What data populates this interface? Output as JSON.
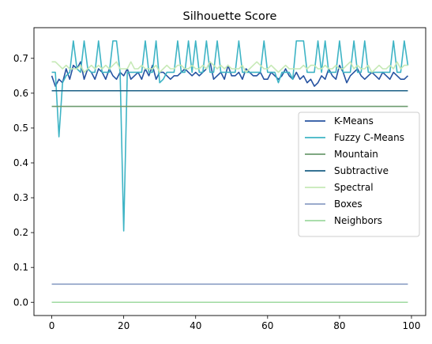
{
  "chart_data": {
    "type": "line",
    "title": "Silhouette Score",
    "xlabel": "",
    "ylabel": "",
    "xlim": [
      -4.95,
      103.95
    ],
    "ylim": [
      -0.038,
      0.788
    ],
    "xticks": [
      0,
      20,
      40,
      60,
      80,
      100
    ],
    "yticks": [
      0.0,
      0.1,
      0.2,
      0.3,
      0.4,
      0.5,
      0.6,
      0.7
    ],
    "ytick_labels": [
      "0.0",
      "0.1",
      "0.2",
      "0.3",
      "0.4",
      "0.5",
      "0.6",
      "0.7"
    ],
    "grid": false,
    "legend_position": "center-right",
    "x_start": 0,
    "series": [
      {
        "name": "K-Means",
        "color": "#2653a1",
        "values": [
          0.65,
          0.62,
          0.64,
          0.63,
          0.67,
          0.64,
          0.68,
          0.67,
          0.69,
          0.64,
          0.67,
          0.66,
          0.64,
          0.67,
          0.66,
          0.64,
          0.67,
          0.65,
          0.64,
          0.66,
          0.65,
          0.67,
          0.64,
          0.65,
          0.66,
          0.64,
          0.67,
          0.65,
          0.68,
          0.64,
          0.66,
          0.66,
          0.65,
          0.64,
          0.65,
          0.65,
          0.66,
          0.67,
          0.66,
          0.65,
          0.66,
          0.65,
          0.66,
          0.67,
          0.69,
          0.64,
          0.65,
          0.66,
          0.64,
          0.68,
          0.65,
          0.65,
          0.66,
          0.64,
          0.67,
          0.66,
          0.65,
          0.65,
          0.66,
          0.64,
          0.64,
          0.66,
          0.65,
          0.64,
          0.65,
          0.67,
          0.65,
          0.64,
          0.66,
          0.64,
          0.65,
          0.63,
          0.64,
          0.62,
          0.63,
          0.65,
          0.64,
          0.67,
          0.65,
          0.64,
          0.68,
          0.66,
          0.63,
          0.65,
          0.66,
          0.67,
          0.65,
          0.64,
          0.65,
          0.66,
          0.65,
          0.64,
          0.66,
          0.65,
          0.64,
          0.66,
          0.65,
          0.64,
          0.64,
          0.65
        ]
      },
      {
        "name": "Fuzzy C-Means",
        "color": "#3eb4c5",
        "values": [
          0.66,
          0.66,
          0.475,
          0.63,
          0.65,
          0.66,
          0.75,
          0.67,
          0.66,
          0.75,
          0.67,
          0.66,
          0.66,
          0.75,
          0.66,
          0.66,
          0.66,
          0.75,
          0.75,
          0.66,
          0.205,
          0.66,
          0.66,
          0.66,
          0.66,
          0.66,
          0.75,
          0.66,
          0.66,
          0.75,
          0.63,
          0.64,
          0.66,
          0.66,
          0.66,
          0.75,
          0.66,
          0.66,
          0.75,
          0.66,
          0.75,
          0.66,
          0.66,
          0.75,
          0.66,
          0.66,
          0.75,
          0.66,
          0.66,
          0.66,
          0.66,
          0.66,
          0.75,
          0.66,
          0.66,
          0.66,
          0.66,
          0.66,
          0.66,
          0.75,
          0.66,
          0.66,
          0.66,
          0.63,
          0.66,
          0.66,
          0.66,
          0.64,
          0.75,
          0.75,
          0.75,
          0.66,
          0.66,
          0.66,
          0.75,
          0.66,
          0.75,
          0.66,
          0.66,
          0.66,
          0.75,
          0.66,
          0.66,
          0.66,
          0.75,
          0.66,
          0.66,
          0.75,
          0.66,
          0.66,
          0.66,
          0.66,
          0.66,
          0.66,
          0.66,
          0.75,
          0.66,
          0.66,
          0.75,
          0.68
        ]
      },
      {
        "name": "Mountain",
        "color": "#6d9b6f",
        "values": [
          0.562
        ]
      },
      {
        "name": "Subtractive",
        "color": "#1a5f85",
        "values": [
          0.607
        ]
      },
      {
        "name": "Spectral",
        "color": "#c6e9b6",
        "values": [
          0.69,
          0.69,
          0.68,
          0.67,
          0.68,
          0.67,
          0.67,
          0.67,
          0.68,
          0.66,
          0.67,
          0.68,
          0.67,
          0.68,
          0.67,
          0.68,
          0.67,
          0.68,
          0.69,
          0.67,
          0.67,
          0.67,
          0.69,
          0.67,
          0.67,
          0.68,
          0.67,
          0.67,
          0.67,
          0.68,
          0.66,
          0.67,
          0.68,
          0.67,
          0.67,
          0.68,
          0.68,
          0.67,
          0.67,
          0.68,
          0.67,
          0.67,
          0.68,
          0.67,
          0.69,
          0.68,
          0.67,
          0.68,
          0.67,
          0.68,
          0.67,
          0.67,
          0.67,
          0.68,
          0.66,
          0.67,
          0.68,
          0.69,
          0.68,
          0.67,
          0.67,
          0.68,
          0.67,
          0.66,
          0.67,
          0.68,
          0.67,
          0.67,
          0.67,
          0.67,
          0.68,
          0.67,
          0.68,
          0.68,
          0.67,
          0.67,
          0.68,
          0.67,
          0.67,
          0.68,
          0.67,
          0.67,
          0.68,
          0.69,
          0.67,
          0.68,
          0.67,
          0.67,
          0.68,
          0.66,
          0.67,
          0.68,
          0.67,
          0.67,
          0.68,
          0.67,
          0.69,
          0.67,
          0.68,
          0.68
        ]
      },
      {
        "name": "Boxes",
        "color": "#8b9ec4",
        "values": [
          0.052
        ]
      },
      {
        "name": "Neighbors",
        "color": "#9edaa0",
        "values": [
          0.0
        ]
      }
    ]
  }
}
